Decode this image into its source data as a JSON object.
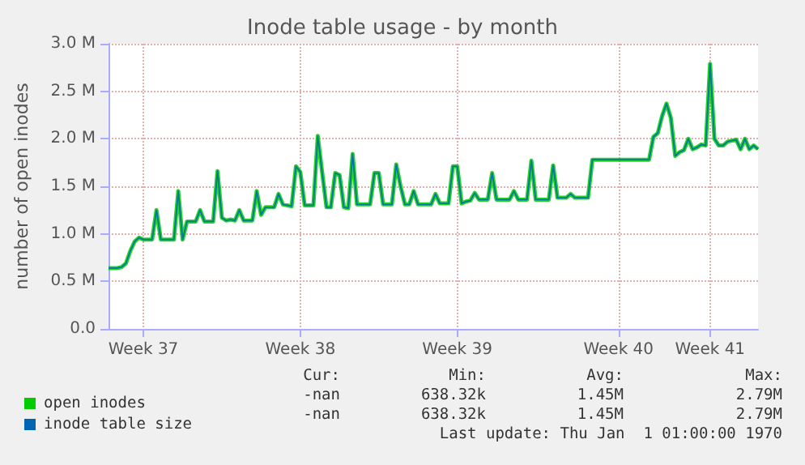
{
  "chart_data": {
    "type": "line",
    "title": "Inode table usage - by month",
    "ylabel": "number of open inodes",
    "categories": [
      null,
      null,
      null,
      null,
      null,
      null,
      null,
      null,
      "Week 37",
      null,
      null,
      null,
      null,
      null,
      null,
      null,
      null,
      null,
      null,
      null,
      null,
      null,
      null,
      null,
      null,
      null,
      null,
      null,
      null,
      null,
      null,
      null,
      null,
      null,
      null,
      null,
      null,
      null,
      null,
      null,
      null,
      null,
      null,
      null,
      "Week 38",
      null,
      null,
      null,
      null,
      null,
      null,
      null,
      null,
      null,
      null,
      null,
      null,
      null,
      null,
      null,
      null,
      null,
      null,
      null,
      null,
      null,
      null,
      null,
      null,
      null,
      null,
      null,
      null,
      null,
      null,
      null,
      null,
      null,
      null,
      null,
      "Week 39",
      null,
      null,
      null,
      null,
      null,
      null,
      null,
      null,
      null,
      null,
      null,
      null,
      null,
      null,
      null,
      null,
      null,
      null,
      null,
      null,
      null,
      null,
      null,
      null,
      null,
      null,
      null,
      null,
      null,
      null,
      null,
      null,
      null,
      null,
      null,
      null,
      "Week 40",
      null,
      null,
      null,
      null,
      null,
      null,
      null,
      null,
      null,
      null,
      null,
      null,
      null,
      null,
      null,
      null,
      null,
      null,
      null,
      null,
      "Week 41",
      null,
      null,
      null,
      null,
      null,
      null,
      null,
      null,
      null,
      null,
      null
    ],
    "series": [
      {
        "name": "open inodes",
        "color": "#00cc00",
        "values": [
          0.64,
          0.64,
          0.64,
          0.65,
          0.69,
          0.82,
          0.92,
          0.96,
          0.94,
          0.94,
          0.94,
          1.25,
          0.94,
          0.94,
          0.94,
          0.94,
          1.45,
          0.94,
          1.13,
          1.13,
          1.13,
          1.25,
          1.13,
          1.13,
          1.13,
          1.66,
          1.17,
          1.14,
          1.15,
          1.14,
          1.25,
          1.14,
          1.14,
          1.14,
          1.45,
          1.2,
          1.28,
          1.28,
          1.28,
          1.42,
          1.31,
          1.3,
          1.29,
          1.71,
          1.65,
          1.3,
          1.3,
          1.3,
          2.03,
          1.65,
          1.28,
          1.28,
          1.64,
          1.62,
          1.28,
          1.27,
          1.84,
          1.31,
          1.31,
          1.31,
          1.31,
          1.64,
          1.64,
          1.31,
          1.31,
          1.31,
          1.73,
          1.5,
          1.31,
          1.31,
          1.45,
          1.31,
          1.31,
          1.31,
          1.31,
          1.42,
          1.32,
          1.32,
          1.32,
          1.71,
          1.71,
          1.32,
          1.34,
          1.35,
          1.43,
          1.36,
          1.36,
          1.36,
          1.64,
          1.36,
          1.36,
          1.36,
          1.36,
          1.45,
          1.36,
          1.36,
          1.36,
          1.77,
          1.36,
          1.36,
          1.36,
          1.36,
          1.72,
          1.38,
          1.38,
          1.38,
          1.42,
          1.38,
          1.38,
          1.38,
          1.38,
          1.78,
          1.78,
          1.78,
          1.78,
          1.78,
          1.78,
          1.78,
          1.78,
          1.78,
          1.78,
          1.78,
          1.78,
          1.78,
          1.78,
          2.02,
          2.06,
          2.24,
          2.37,
          2.22,
          1.82,
          1.86,
          1.88,
          2.0,
          1.89,
          1.91,
          1.94,
          1.93,
          2.79,
          2.0,
          1.93,
          1.93,
          1.97,
          1.98,
          1.99,
          1.89,
          2.0,
          1.89,
          1.93,
          1.89
        ]
      },
      {
        "name": "inode table size",
        "color": "#0066b3",
        "values": [
          0.64,
          0.64,
          0.64,
          0.65,
          0.69,
          0.82,
          0.92,
          0.96,
          0.94,
          0.94,
          0.94,
          1.25,
          0.94,
          0.94,
          0.94,
          0.94,
          1.45,
          0.94,
          1.13,
          1.13,
          1.13,
          1.25,
          1.13,
          1.13,
          1.13,
          1.66,
          1.17,
          1.14,
          1.15,
          1.14,
          1.25,
          1.14,
          1.14,
          1.14,
          1.45,
          1.2,
          1.28,
          1.28,
          1.28,
          1.42,
          1.31,
          1.3,
          1.29,
          1.71,
          1.65,
          1.3,
          1.3,
          1.3,
          2.03,
          1.65,
          1.28,
          1.28,
          1.64,
          1.62,
          1.28,
          1.27,
          1.84,
          1.31,
          1.31,
          1.31,
          1.31,
          1.64,
          1.64,
          1.31,
          1.31,
          1.31,
          1.73,
          1.5,
          1.31,
          1.31,
          1.45,
          1.31,
          1.31,
          1.31,
          1.31,
          1.42,
          1.32,
          1.32,
          1.32,
          1.71,
          1.71,
          1.32,
          1.34,
          1.35,
          1.43,
          1.36,
          1.36,
          1.36,
          1.64,
          1.36,
          1.36,
          1.36,
          1.36,
          1.45,
          1.36,
          1.36,
          1.36,
          1.77,
          1.36,
          1.36,
          1.36,
          1.36,
          1.72,
          1.38,
          1.38,
          1.38,
          1.42,
          1.38,
          1.38,
          1.38,
          1.38,
          1.78,
          1.78,
          1.78,
          1.78,
          1.78,
          1.78,
          1.78,
          1.78,
          1.78,
          1.78,
          1.78,
          1.78,
          1.78,
          1.78,
          2.02,
          2.06,
          2.24,
          2.37,
          2.22,
          1.82,
          1.86,
          1.88,
          2.0,
          1.89,
          1.91,
          1.94,
          1.93,
          2.79,
          2.0,
          1.93,
          1.93,
          1.97,
          1.98,
          1.99,
          1.89,
          2.0,
          1.89,
          1.93,
          1.89
        ]
      }
    ],
    "ylim": [
      0,
      3
    ],
    "yticks": [
      {
        "value": 0,
        "label": "0.0"
      },
      {
        "value": 0.5,
        "label": "0.5 M"
      },
      {
        "value": 1,
        "label": "1.0 M"
      },
      {
        "value": 1.5,
        "label": "1.5 M"
      },
      {
        "value": 2,
        "label": "2.0 M"
      },
      {
        "value": 2.5,
        "label": "2.5 M"
      },
      {
        "value": 3,
        "label": "3.0 M"
      }
    ],
    "grid": true,
    "legend": "bottom left",
    "marker": "none",
    "line_style": "solid",
    "annotations": [
      "Cur:",
      "Min:",
      "Avg:",
      "Max:",
      "-nan",
      "638.32k",
      "1.45M",
      "2.79M",
      "-nan",
      "638.32k",
      "1.45M",
      "2.79M",
      "Last update: Thu Jan  1 01:00:00 1970"
    ]
  }
}
